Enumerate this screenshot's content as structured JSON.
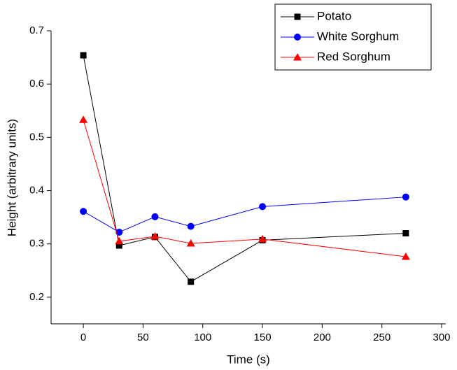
{
  "chart_data": {
    "type": "line",
    "x_label": "Time (s)",
    "y_label": "Height (arbitrary units)",
    "x": [
      0,
      30,
      60,
      90,
      150,
      270
    ],
    "series": [
      {
        "name": "Potato",
        "color": "#000000",
        "marker": "square",
        "values": [
          0.654,
          0.297,
          0.313,
          0.229,
          0.307,
          0.32
        ]
      },
      {
        "name": "White Sorghum",
        "color": "#0000ff",
        "marker": "circle",
        "values": [
          0.361,
          0.322,
          0.351,
          0.333,
          0.37,
          0.388
        ]
      },
      {
        "name": "Red Sorghum",
        "color": "#ff0000",
        "marker": "triangle",
        "values": [
          0.533,
          0.305,
          0.314,
          0.301,
          0.309,
          0.276
        ]
      }
    ],
    "xlim": [
      -27,
      303.5
    ],
    "xticks": [
      0,
      50,
      100,
      150,
      200,
      250,
      300
    ],
    "ylim": [
      0.15,
      0.7
    ],
    "yticks": [
      0.2,
      0.3,
      0.4,
      0.5,
      0.6,
      0.7
    ],
    "legend": "top-right"
  }
}
